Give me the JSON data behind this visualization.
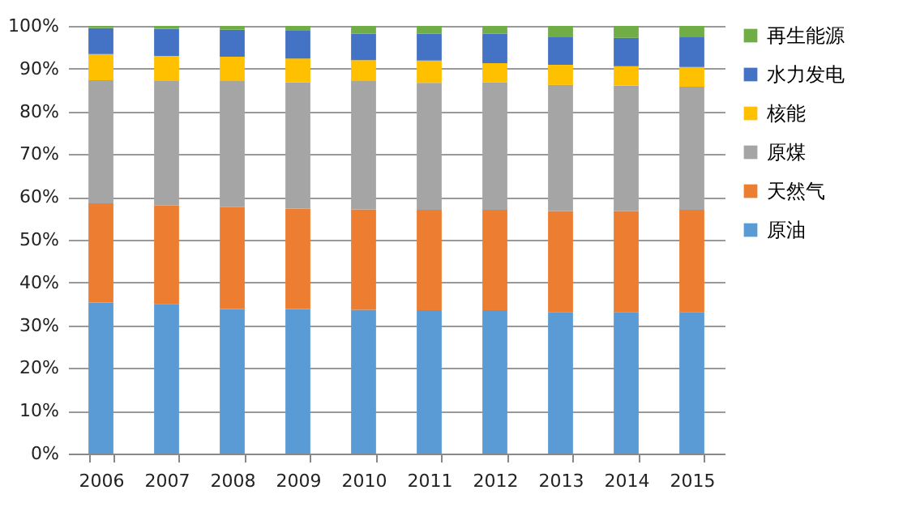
{
  "chart_data": {
    "type": "bar",
    "stacked": true,
    "categories": [
      "2006",
      "2007",
      "2008",
      "2009",
      "2010",
      "2011",
      "2012",
      "2013",
      "2014",
      "2015"
    ],
    "series": [
      {
        "name": "原油",
        "color": "#5b9bd5",
        "values": [
          35.3,
          35.0,
          33.8,
          33.8,
          33.6,
          33.5,
          33.5,
          33.1,
          33.1,
          33.1
        ]
      },
      {
        "name": "天然气",
        "color": "#ed7d31",
        "values": [
          23.2,
          23.0,
          23.8,
          23.5,
          23.5,
          23.5,
          23.5,
          23.6,
          23.6,
          23.9
        ]
      },
      {
        "name": "原煤",
        "color": "#a5a5a5",
        "values": [
          28.8,
          29.1,
          29.5,
          29.5,
          30.0,
          29.7,
          29.8,
          29.5,
          29.4,
          28.8
        ]
      },
      {
        "name": "核能",
        "color": "#ffc000",
        "values": [
          6.1,
          5.9,
          5.7,
          5.6,
          4.9,
          5.2,
          4.5,
          4.7,
          4.5,
          4.6
        ]
      },
      {
        "name": "水力发电",
        "color": "#4472c4",
        "values": [
          6.1,
          6.3,
          6.3,
          6.6,
          6.2,
          6.3,
          6.9,
          6.6,
          6.6,
          7.1
        ]
      },
      {
        "name": "再生能源",
        "color": "#70ad47",
        "values": [
          0.5,
          0.7,
          0.9,
          1.0,
          1.8,
          1.8,
          1.8,
          2.5,
          2.8,
          2.5
        ]
      }
    ],
    "ylim": [
      0,
      100
    ],
    "yticks": [
      {
        "value": 0,
        "label": "0%"
      },
      {
        "value": 10,
        "label": "10%"
      },
      {
        "value": 20,
        "label": "20%"
      },
      {
        "value": 30,
        "label": "30%"
      },
      {
        "value": 40,
        "label": "40%"
      },
      {
        "value": 50,
        "label": "50%"
      },
      {
        "value": 60,
        "label": "60%"
      },
      {
        "value": 70,
        "label": "70%"
      },
      {
        "value": 80,
        "label": "80%"
      },
      {
        "value": 90,
        "label": "90%"
      },
      {
        "value": 100,
        "label": "100%"
      }
    ],
    "grid": "y",
    "legend": "right"
  }
}
